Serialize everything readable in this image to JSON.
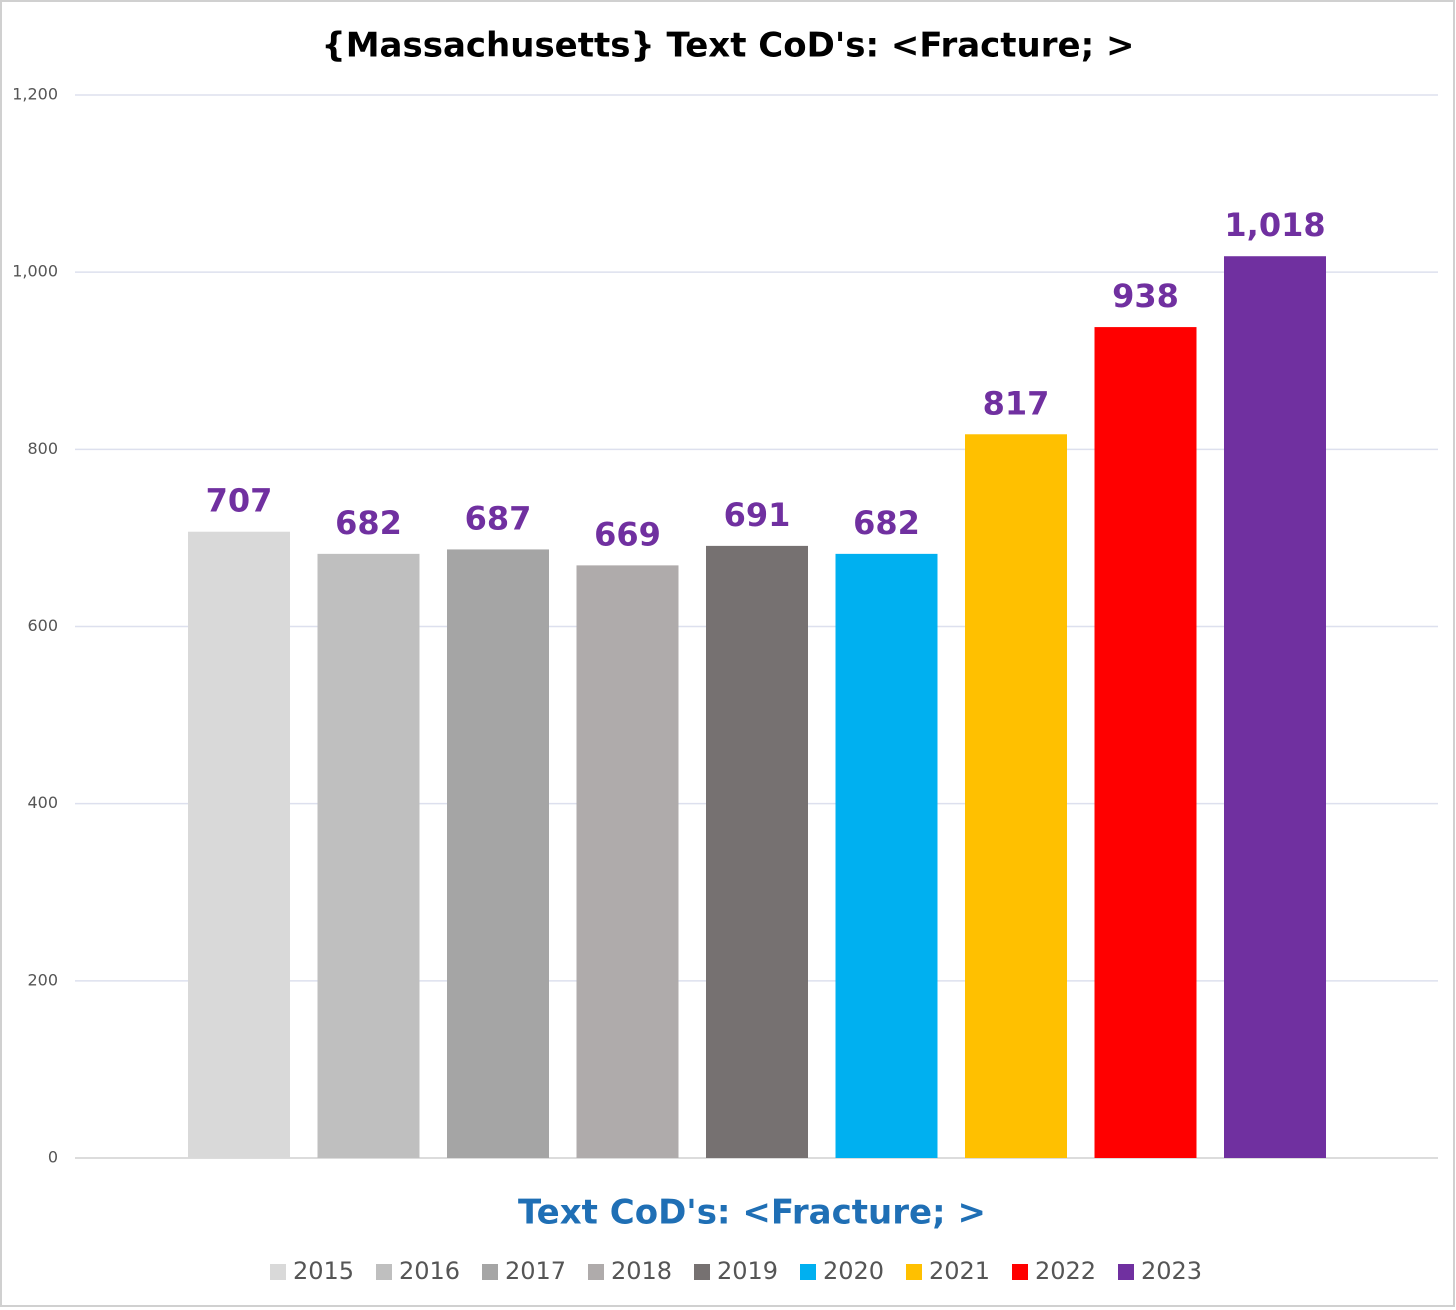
{
  "chart_data": {
    "type": "bar",
    "title": "{Massachusetts}  Text CoD's: <Fracture; >",
    "x_label": "Text CoD's: <Fracture; >",
    "categories": [
      null
    ],
    "series": [
      {
        "name": "2015",
        "color": "#d9d9d9",
        "values": [
          707
        ]
      },
      {
        "name": "2016",
        "color": "#bfbfbf",
        "values": [
          682
        ]
      },
      {
        "name": "2017",
        "color": "#a5a5a5",
        "values": [
          687
        ]
      },
      {
        "name": "2018",
        "color": "#afabab",
        "values": [
          669
        ]
      },
      {
        "name": "2019",
        "color": "#767171",
        "values": [
          691
        ]
      },
      {
        "name": "2020",
        "color": "#00b0f0",
        "values": [
          682
        ]
      },
      {
        "name": "2021",
        "color": "#ffc000",
        "values": [
          817
        ]
      },
      {
        "name": "2022",
        "color": "#ff0000",
        "values": [
          938
        ]
      },
      {
        "name": "2023",
        "color": "#7030a0",
        "values": [
          1018
        ],
        "value_labels": [
          "1,018"
        ]
      }
    ],
    "ylim": [
      0,
      1200
    ],
    "yticks": [
      0,
      200,
      400,
      600,
      800,
      {
        "value": 1000,
        "label": "1,000"
      },
      {
        "value": 1200,
        "label": "1,200"
      }
    ],
    "grid": true,
    "legend": "bottom",
    "value_label_color": "#7030a0"
  }
}
